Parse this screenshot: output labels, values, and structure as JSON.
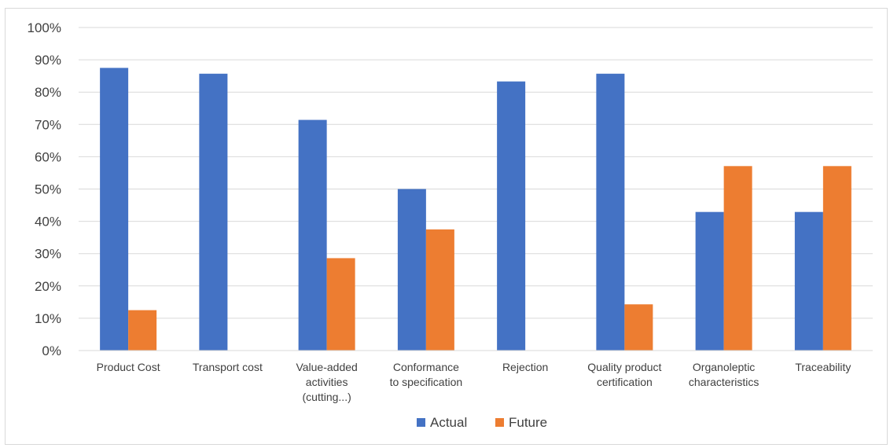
{
  "chart_data": {
    "type": "bar",
    "categories": [
      [
        "Product Cost"
      ],
      [
        "Transport cost"
      ],
      [
        "Value-added",
        "activities",
        "(cutting...)"
      ],
      [
        "Conformance",
        "to specification"
      ],
      [
        "Rejection"
      ],
      [
        "Quality product",
        "certification"
      ],
      [
        "Organoleptic",
        "characteristics"
      ],
      [
        "Traceability"
      ]
    ],
    "series": [
      {
        "name": "Actual",
        "color": "#4472C4",
        "values": [
          87.5,
          85.7,
          71.4,
          50.0,
          83.3,
          85.7,
          42.9,
          42.9
        ]
      },
      {
        "name": "Future",
        "color": "#ED7D31",
        "values": [
          12.5,
          0,
          28.6,
          37.5,
          0,
          14.3,
          57.1,
          57.1
        ]
      }
    ],
    "ylim": [
      0,
      100
    ],
    "ytick_step": 10,
    "ytick_suffix": "%",
    "grid": true,
    "legend_position": "bottom-center",
    "title": "",
    "xlabel": "",
    "ylabel": ""
  }
}
